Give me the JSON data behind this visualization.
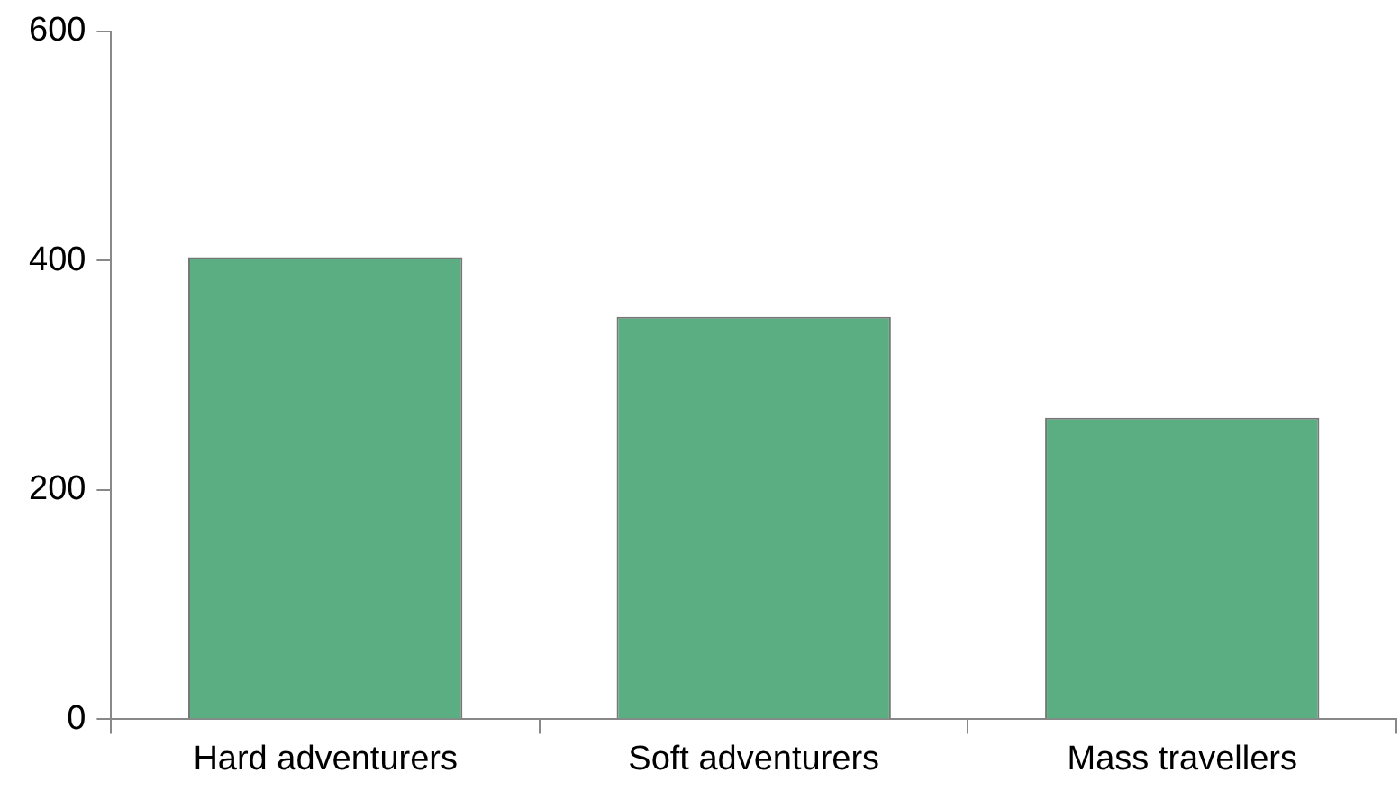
{
  "chart_data": {
    "type": "bar",
    "categories": [
      "Hard adventurers",
      "Soft adventurers",
      "Mass travellers"
    ],
    "values": [
      403,
      351,
      263
    ],
    "color": "#5aae82",
    "ylim": [
      0,
      600
    ],
    "yticks": [
      0,
      200,
      400,
      600
    ],
    "grid": false,
    "legend": false
  }
}
